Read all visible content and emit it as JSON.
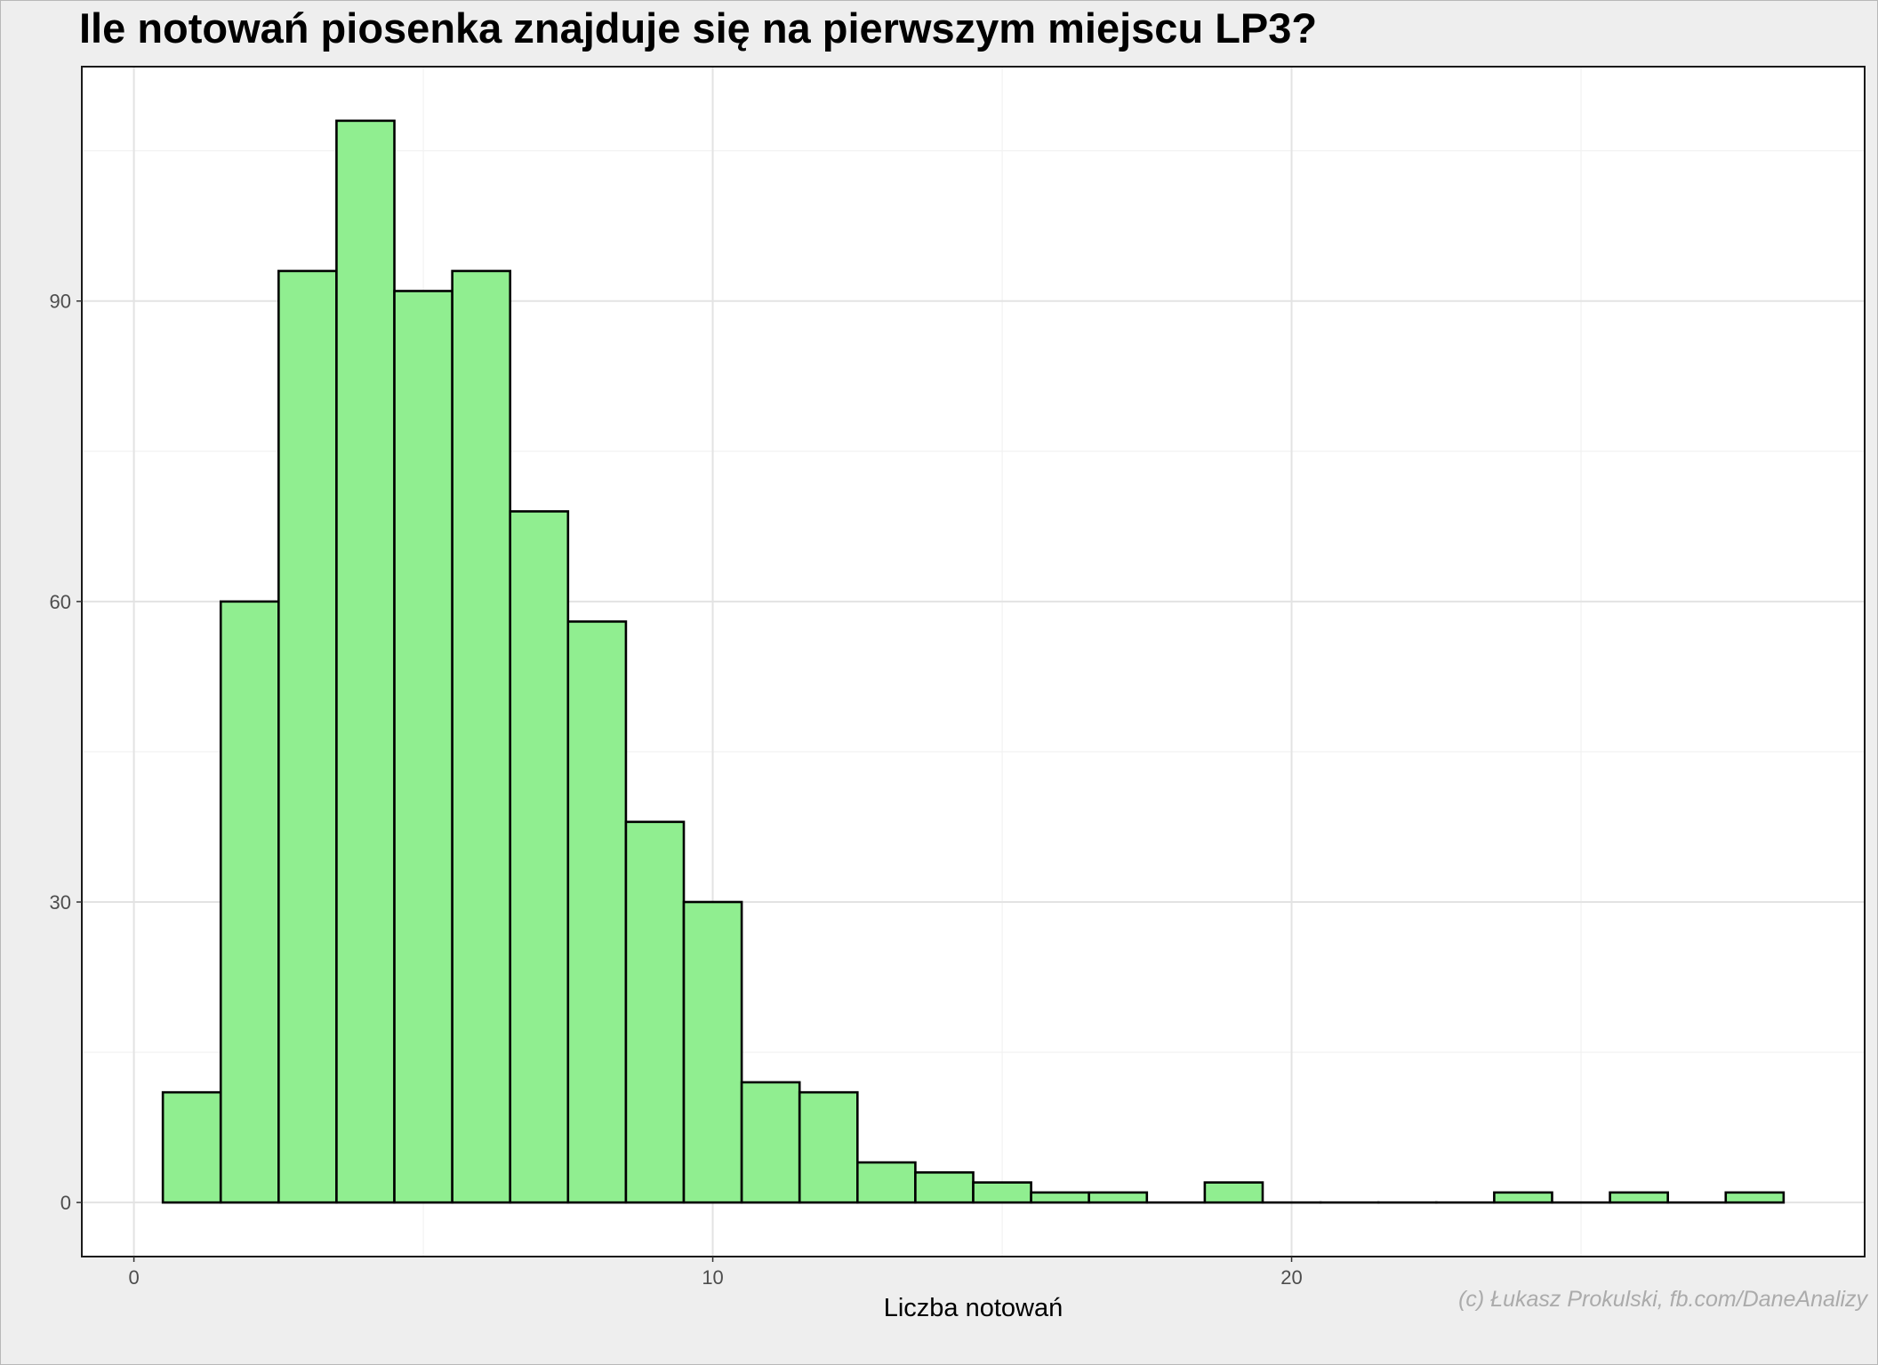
{
  "chart_data": {
    "type": "bar",
    "title": "Ile notowań piosenka znajduje się na pierwszym miejscu LP3?",
    "xlabel": "Liczba notowań",
    "ylabel": "",
    "caption": "(c) Łukasz Prokulski, fb.com/DaneAnalizy",
    "xlim": [
      -0.9,
      29.9
    ],
    "ylim": [
      -5.4,
      113.4
    ],
    "x_ticks": [
      0,
      10,
      20
    ],
    "x_minor_ticks": [
      5,
      15,
      25
    ],
    "y_ticks": [
      0,
      30,
      60,
      90
    ],
    "y_minor_ticks": [
      15,
      45,
      75,
      105
    ],
    "bin_width": 1,
    "bins": [
      {
        "x": 1,
        "count": 11
      },
      {
        "x": 2,
        "count": 60
      },
      {
        "x": 3,
        "count": 93
      },
      {
        "x": 4,
        "count": 108
      },
      {
        "x": 5,
        "count": 91
      },
      {
        "x": 6,
        "count": 93
      },
      {
        "x": 7,
        "count": 69
      },
      {
        "x": 8,
        "count": 58
      },
      {
        "x": 9,
        "count": 38
      },
      {
        "x": 10,
        "count": 30
      },
      {
        "x": 11,
        "count": 12
      },
      {
        "x": 12,
        "count": 11
      },
      {
        "x": 13,
        "count": 4
      },
      {
        "x": 14,
        "count": 3
      },
      {
        "x": 15,
        "count": 2
      },
      {
        "x": 16,
        "count": 1
      },
      {
        "x": 17,
        "count": 1
      },
      {
        "x": 18,
        "count": 0
      },
      {
        "x": 19,
        "count": 2
      },
      {
        "x": 20,
        "count": 0
      },
      {
        "x": 21,
        "count": 0
      },
      {
        "x": 22,
        "count": 0
      },
      {
        "x": 23,
        "count": 0
      },
      {
        "x": 24,
        "count": 1
      },
      {
        "x": 25,
        "count": 0
      },
      {
        "x": 26,
        "count": 1
      },
      {
        "x": 27,
        "count": 0
      },
      {
        "x": 28,
        "count": 1
      }
    ],
    "fill_color": "#90ee90",
    "border_color": "#000000",
    "panel_background": "#ffffff",
    "plot_background": "#eeeeee",
    "grid": true,
    "legend": "none"
  }
}
